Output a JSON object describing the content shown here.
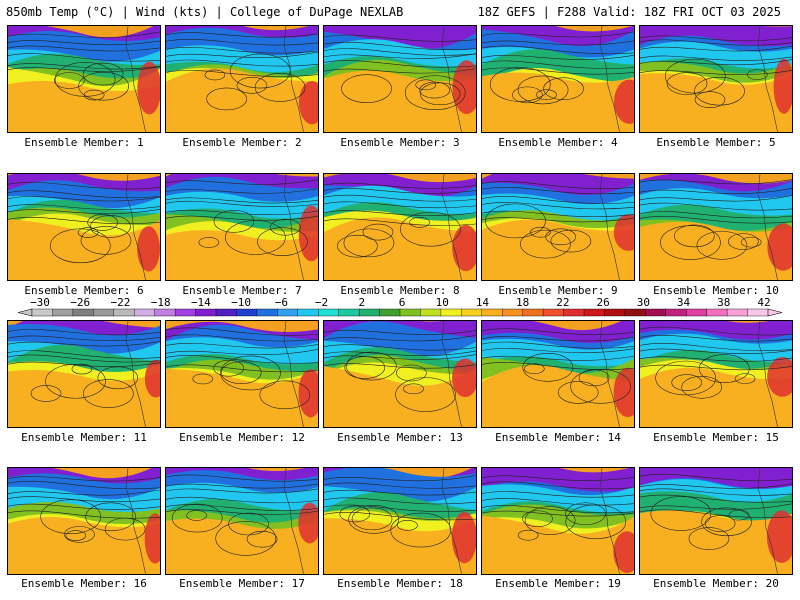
{
  "header": {
    "left_title": "850mb Temp (°C) | Wind (kts) | College of DuPage NEXLAB",
    "right_title": "18Z GEFS | F288 Valid: 18Z FRI OCT 03 2025"
  },
  "members": [
    "Ensemble Member: 1",
    "Ensemble Member: 2",
    "Ensemble Member: 3",
    "Ensemble Member: 4",
    "Ensemble Member: 5",
    "Ensemble Member: 6",
    "Ensemble Member: 7",
    "Ensemble Member: 8",
    "Ensemble Member: 9",
    "Ensemble Member: 10",
    "Ensemble Member: 11",
    "Ensemble Member: 12",
    "Ensemble Member: 13",
    "Ensemble Member: 14",
    "Ensemble Member: 15",
    "Ensemble Member: 16",
    "Ensemble Member: 17",
    "Ensemble Member: 18",
    "Ensemble Member: 19",
    "Ensemble Member: 20"
  ],
  "colorbar": {
    "labels": [
      "−30",
      "−26",
      "−22",
      "−18",
      "−14",
      "−10",
      "−6",
      "−2",
      "2",
      "6",
      "10",
      "14",
      "18",
      "22",
      "26",
      "30",
      "34",
      "38",
      "42"
    ],
    "colors": [
      "#c8c8c8",
      "#a0a0a0",
      "#808080",
      "#9a9a9a",
      "#b8b8b8",
      "#d0b0e0",
      "#c080e0",
      "#a040e0",
      "#8020d0",
      "#5020c0",
      "#2040d0",
      "#2070e0",
      "#30a0f0",
      "#20c8f0",
      "#20e0d0",
      "#20c8a0",
      "#20b070",
      "#40a030",
      "#80c020",
      "#c0e020",
      "#f0f020",
      "#f8d020",
      "#f8b020",
      "#f89020",
      "#f07020",
      "#f05030",
      "#e03030",
      "#d01818",
      "#b01010",
      "#901010",
      "#a01050",
      "#c02080",
      "#e040a0",
      "#f070c0",
      "#f8a0d8",
      "#f8c8e8"
    ]
  },
  "colors": {
    "warm": "#f4a020",
    "cool": "#20b070",
    "cold": "#2070e0",
    "frigid": "#8020d0",
    "hot": "#e03030"
  }
}
